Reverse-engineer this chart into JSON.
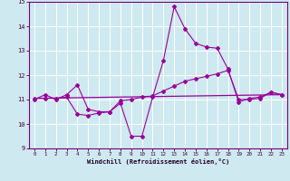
{
  "title": "",
  "xlabel": "Windchill (Refroidissement éolien,°C)",
  "background_color": "#cee9f0",
  "grid_color": "#ffffff",
  "line_color": "#990099",
  "xlim": [
    -0.5,
    23.5
  ],
  "ylim": [
    9,
    15
  ],
  "xticks": [
    0,
    1,
    2,
    3,
    4,
    5,
    6,
    7,
    8,
    9,
    10,
    11,
    12,
    13,
    14,
    15,
    16,
    17,
    18,
    19,
    20,
    21,
    22,
    23
  ],
  "yticks": [
    9,
    10,
    11,
    12,
    13,
    14,
    15
  ],
  "line1_x": [
    0,
    1,
    2,
    3,
    4,
    5,
    6,
    7,
    8,
    9,
    10,
    11,
    12,
    13,
    14,
    15,
    16,
    17,
    18,
    19,
    20,
    21,
    22,
    23
  ],
  "line1_y": [
    11.0,
    11.2,
    11.0,
    11.2,
    11.6,
    10.6,
    10.5,
    10.5,
    10.85,
    9.5,
    9.5,
    11.1,
    12.6,
    14.8,
    13.9,
    13.3,
    13.15,
    13.1,
    12.25,
    10.9,
    11.05,
    11.1,
    11.3,
    11.2
  ],
  "line2_x": [
    0,
    1,
    2,
    3,
    4,
    5,
    6,
    7,
    8,
    9,
    10,
    11,
    12,
    13,
    14,
    15,
    16,
    17,
    18,
    19,
    20,
    21,
    22,
    23
  ],
  "line2_y": [
    11.05,
    11.05,
    11.05,
    11.1,
    10.4,
    10.35,
    10.45,
    10.5,
    10.95,
    11.0,
    11.1,
    11.15,
    11.35,
    11.55,
    11.75,
    11.85,
    11.95,
    12.05,
    12.2,
    11.0,
    11.0,
    11.05,
    11.3,
    11.2
  ],
  "line3_x": [
    0,
    23
  ],
  "line3_y": [
    11.05,
    11.2
  ]
}
